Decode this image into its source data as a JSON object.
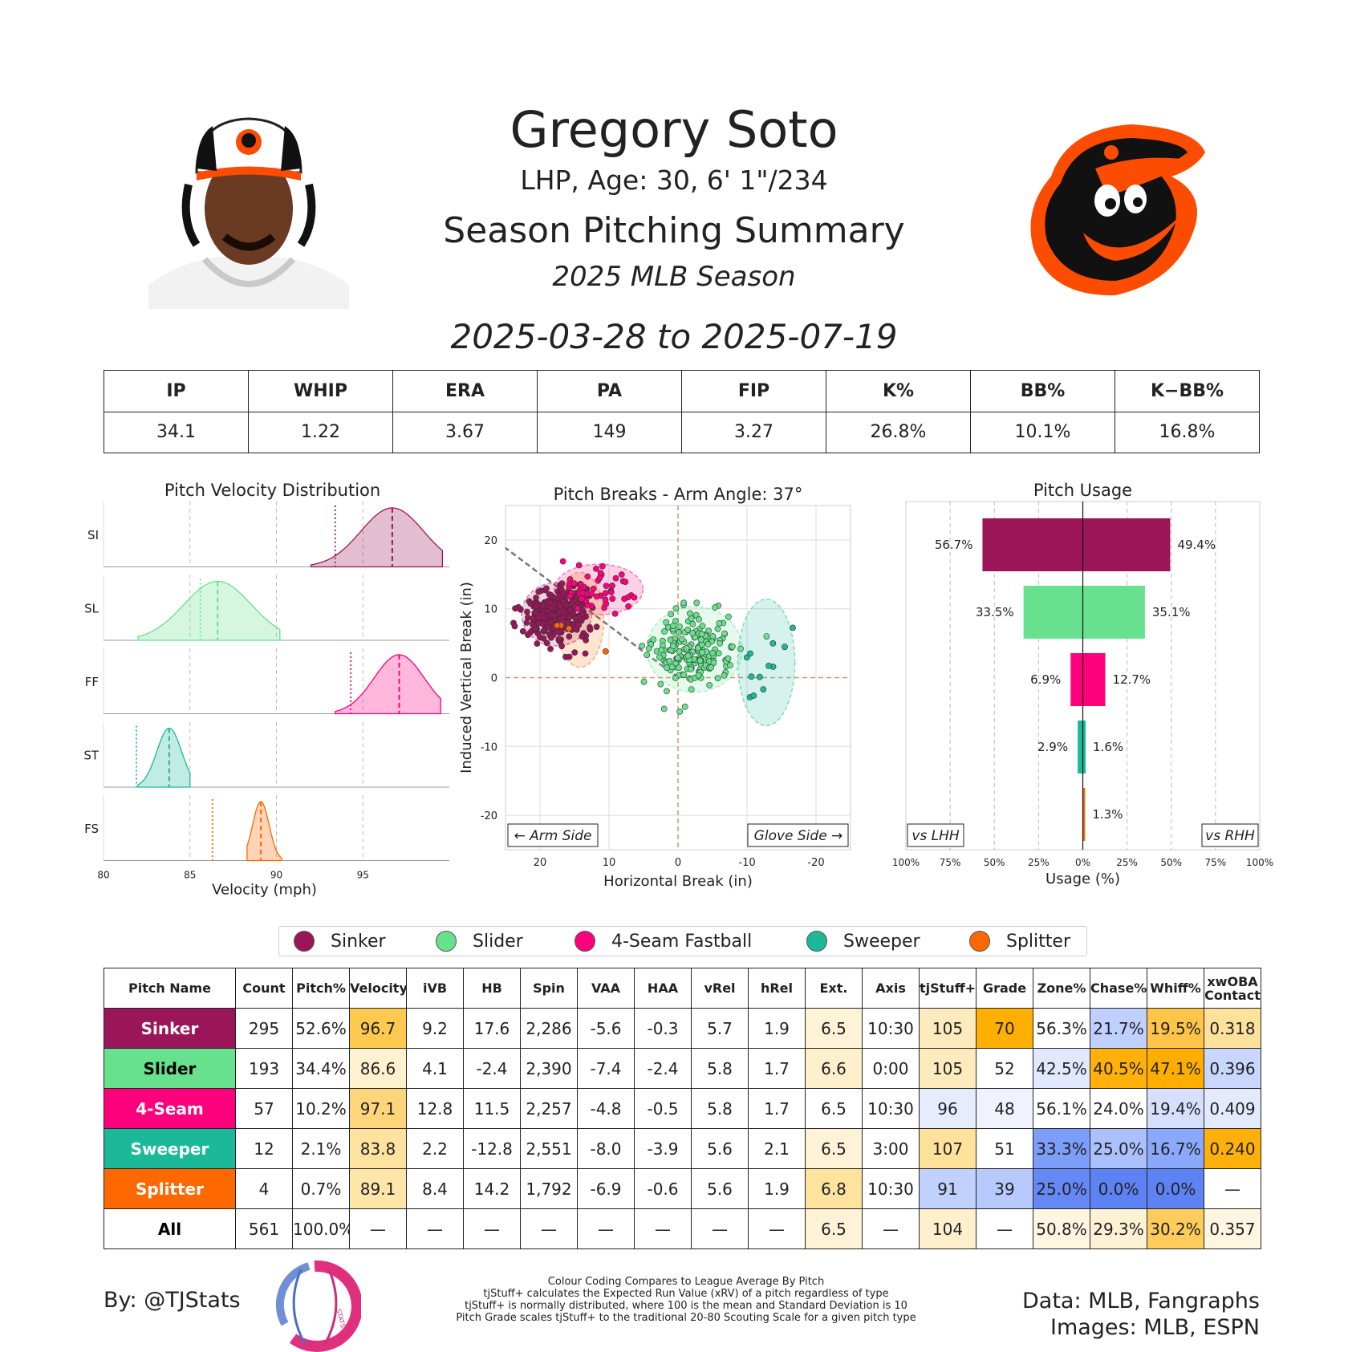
{
  "header": {
    "name": "Gregory Soto",
    "bio": "LHP, Age: 30, 6' 1\"/234",
    "title": "Season Pitching Summary",
    "season": "2025 MLB Season",
    "date_range": "2025-03-28 to 2025-07-19"
  },
  "colors": {
    "sinker": "#9b1659",
    "slider": "#67e18e",
    "fourseam": "#ff007d",
    "sweeper": "#1bb999",
    "splitter": "#ff6700",
    "orioles_orange": "#fc4c02"
  },
  "season_stats": {
    "headers": [
      "IP",
      "WHIP",
      "ERA",
      "PA",
      "FIP",
      "K%",
      "BB%",
      "K−BB%"
    ],
    "values": [
      "34.1",
      "1.22",
      "3.67",
      "149",
      "3.27",
      "26.8%",
      "10.1%",
      "16.8%"
    ]
  },
  "chart_data": [
    {
      "type": "area",
      "title": "Pitch Velocity Distribution",
      "xlabel": "Velocity (mph)",
      "xlim": [
        80,
        100
      ],
      "xticks": [
        "80",
        "85",
        "90",
        "95"
      ],
      "series": [
        {
          "label": "SI",
          "min": 92,
          "max": 99.6,
          "mean": 96.7,
          "league_mean": 93.4,
          "color": "#9b1659"
        },
        {
          "label": "SL",
          "min": 82,
          "max": 90.2,
          "mean": 86.6,
          "league_mean": 85.6,
          "color": "#67e18e"
        },
        {
          "label": "FF",
          "min": 93.4,
          "max": 99.5,
          "mean": 97.1,
          "league_mean": 94.3,
          "color": "#ff007d"
        },
        {
          "label": "ST",
          "min": 82,
          "max": 85,
          "mean": 83.8,
          "league_mean": 81.9,
          "color": "#1bb999"
        },
        {
          "label": "FS",
          "min": 88.3,
          "max": 90.3,
          "mean": 89.1,
          "league_mean": 86.3,
          "color": "#ff6700"
        }
      ]
    },
    {
      "type": "scatter",
      "title": "Pitch Breaks - Arm Angle: 37°",
      "xlabel": "Horizontal Break (in)",
      "ylabel": "Induced Vertical Break (in)",
      "xlim": [
        25,
        -25
      ],
      "ylim": [
        -25,
        25
      ],
      "xticks": [
        "20",
        "10",
        "0",
        "-10",
        "-20"
      ],
      "yticks": [
        "20",
        "10",
        "0",
        "-10",
        "-20"
      ],
      "arm_angle_deg": 37,
      "annotations": [
        "← Arm Side",
        "Glove Side →"
      ],
      "series": [
        {
          "name": "Sinker",
          "count": 295,
          "mean_hb": 17.6,
          "mean_ivb": 9.2,
          "sd_hb": 2.2,
          "sd_ivb": 2.0,
          "color": "#9b1659"
        },
        {
          "name": "Slider",
          "count": 193,
          "mean_hb": -2.4,
          "mean_ivb": 4.1,
          "sd_hb": 3.0,
          "sd_ivb": 2.7,
          "color": "#67e18e"
        },
        {
          "name": "4-Seam Fastball",
          "count": 57,
          "mean_hb": 11.5,
          "mean_ivb": 12.8,
          "sd_hb": 2.8,
          "sd_ivb": 1.6,
          "color": "#ff007d"
        },
        {
          "name": "Sweeper",
          "count": 12,
          "mean_hb": -12.8,
          "mean_ivb": 2.2,
          "sd_hb": 1.8,
          "sd_ivb": 4.0,
          "color": "#1bb999"
        },
        {
          "name": "Splitter",
          "count": 4,
          "mean_hb": 14.2,
          "mean_ivb": 8.4,
          "sd_hb": 1.5,
          "sd_ivb": 3.0,
          "color": "#ff6700"
        }
      ]
    },
    {
      "type": "bar",
      "title": "Pitch Usage",
      "xlabel": "Usage (%)",
      "xticks": [
        "100%",
        "75%",
        "50%",
        "25%",
        "0%",
        "25%",
        "50%",
        "75%",
        "100%"
      ],
      "side_labels": [
        "vs LHH",
        "vs RHH"
      ],
      "categories": [
        "Sinker",
        "Slider",
        "4-Seam Fastball",
        "Sweeper",
        "Splitter"
      ],
      "series": [
        {
          "name": "vs LHH",
          "values": [
            56.7,
            33.5,
            6.9,
            2.9,
            0.0
          ],
          "labels": [
            "56.7%",
            "33.5%",
            "6.9%",
            "2.9%",
            ""
          ]
        },
        {
          "name": "vs RHH",
          "values": [
            49.4,
            35.1,
            12.7,
            1.6,
            1.3
          ],
          "labels": [
            "49.4%",
            "35.1%",
            "12.7%",
            "1.6%",
            "1.3%"
          ]
        }
      ]
    }
  ],
  "legend": [
    "Sinker",
    "Slider",
    "4-Seam Fastball",
    "Sweeper",
    "Splitter"
  ],
  "pitch_table": {
    "headers": [
      "Pitch Name",
      "Count",
      "Pitch%",
      "Velocity",
      "iVB",
      "HB",
      "Spin",
      "VAA",
      "HAA",
      "vRel",
      "hRel",
      "Ext.",
      "Axis",
      "tjStuff+",
      "Grade",
      "Zone%",
      "Chase%",
      "Whiff%",
      "xwOBA Contact"
    ],
    "rows": [
      [
        "Sinker",
        "295",
        "52.6%",
        "96.7",
        "9.2",
        "17.6",
        "2,286",
        "-5.6",
        "-0.3",
        "5.7",
        "1.9",
        "6.5",
        "10:30",
        "105",
        "70",
        "56.3%",
        "21.7%",
        "19.5%",
        "0.318"
      ],
      [
        "Slider",
        "193",
        "34.4%",
        "86.6",
        "4.1",
        "-2.4",
        "2,390",
        "-7.4",
        "-2.4",
        "5.8",
        "1.7",
        "6.6",
        "0:00",
        "105",
        "52",
        "42.5%",
        "40.5%",
        "47.1%",
        "0.396"
      ],
      [
        "4-Seam",
        "57",
        "10.2%",
        "97.1",
        "12.8",
        "11.5",
        "2,257",
        "-4.8",
        "-0.5",
        "5.8",
        "1.7",
        "6.5",
        "10:30",
        "96",
        "48",
        "56.1%",
        "24.0%",
        "19.4%",
        "0.409"
      ],
      [
        "Sweeper",
        "12",
        "2.1%",
        "83.8",
        "2.2",
        "-12.8",
        "2,551",
        "-8.0",
        "-3.9",
        "5.6",
        "2.1",
        "6.5",
        "3:00",
        "107",
        "51",
        "33.3%",
        "25.0%",
        "16.7%",
        "0.240"
      ],
      [
        "Splitter",
        "4",
        "0.7%",
        "89.1",
        "8.4",
        "14.2",
        "1,792",
        "-6.9",
        "-0.6",
        "5.6",
        "1.9",
        "6.8",
        "10:30",
        "91",
        "39",
        "25.0%",
        "0.0%",
        "0.0%",
        "—"
      ],
      [
        "All",
        "561",
        "100.0%",
        "—",
        "—",
        "—",
        "—",
        "—",
        "—",
        "—",
        "—",
        "6.5",
        "—",
        "104",
        "—",
        "50.8%",
        "29.3%",
        "30.2%",
        "0.357"
      ]
    ],
    "name_colors": [
      "#9b1659",
      "#67e18e",
      "#ff007d",
      "#1bb999",
      "#ff6700",
      "#ffffff"
    ],
    "name_text_colors": [
      "#ffffff",
      "#000000",
      "#ffffff",
      "#ffffff",
      "#ffffff",
      "#000000"
    ],
    "cell_colors": [
      [
        "",
        "",
        "",
        "#fec94f",
        "",
        "",
        "",
        "",
        "",
        "",
        "",
        "#fef3d6",
        "",
        "#feebbd",
        "#ffaf00",
        "",
        "#bfcffe",
        "#ffc54a",
        "#fee19a"
      ],
      [
        "",
        "",
        "",
        "#fef1d0",
        "",
        "",
        "",
        "",
        "",
        "",
        "",
        "#fef0cd",
        "",
        "#feebbd",
        "",
        "#e2e9fe",
        "#ffb00b",
        "#ffae00",
        "#c9d7fe"
      ],
      [
        "",
        "",
        "",
        "#fed57a",
        "",
        "",
        "",
        "",
        "",
        "",
        "",
        "",
        "",
        "#e6ecfe",
        "#f0f3fe",
        "",
        "",
        "#d6e0fe",
        "#e3eafe"
      ],
      [
        "",
        "",
        "",
        "#fee29f",
        "",
        "",
        "",
        "",
        "",
        "",
        "",
        "#fef3d6",
        "",
        "#fee19b",
        "",
        "#7c9ef9",
        "#abc1fd",
        "#8aa9fa",
        "#ffb00a"
      ],
      [
        "",
        "",
        "",
        "#fee6a9",
        "",
        "",
        "",
        "",
        "",
        "",
        "",
        "#fee39f",
        "",
        "#c1d1fe",
        "#b7c9fd",
        "#6588f5",
        "#5d82f3",
        "#5d82f3",
        ""
      ],
      [
        "",
        "",
        "",
        "",
        "",
        "",
        "",
        "",
        "",
        "",
        "",
        "#fef3d6",
        "",
        "#fef0cd",
        "",
        "#fef6e1",
        "#fef2d4",
        "#fdcc5b",
        "#fef6e0"
      ]
    ]
  },
  "footer": {
    "byline": "By: @TJStats",
    "logo_text": "STATS",
    "credit_line1": "Data: MLB, Fangraphs",
    "credit_line2": "Images: MLB, ESPN",
    "notes": [
      "Colour Coding Compares to League Average By Pitch",
      "tjStuff+ calculates the Expected Run Value (xRV) of a pitch regardless of type",
      "tjStuff+ is normally distributed, where 100 is the mean and Standard Deviation is 10",
      "Pitch Grade scales tjStuff+ to the traditional 20-80 Scouting Scale for a given pitch type"
    ]
  }
}
